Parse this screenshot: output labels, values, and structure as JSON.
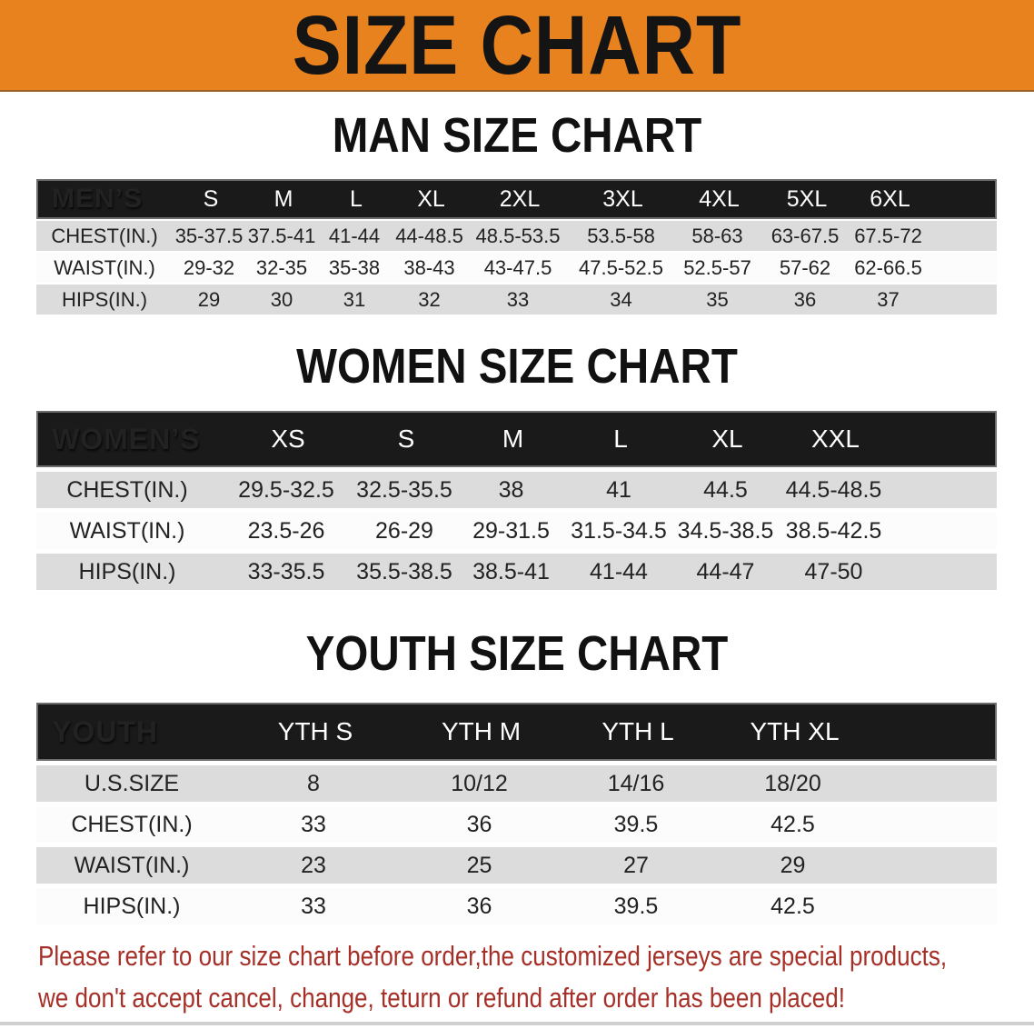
{
  "banner": {
    "title": "SIZE CHART"
  },
  "colors": {
    "banner_bg": "#E8821E",
    "table_header_bg": "#1A1A1A",
    "row_gray": "#DCDCDC",
    "row_white": "#FCFCFC",
    "note_red": "#A63028"
  },
  "sections": [
    {
      "heading": "MAN SIZE CHART",
      "table": {
        "label": "MEN’S",
        "columns": [
          "S",
          "M",
          "L",
          "XL",
          "2XL",
          "3XL",
          "4XL",
          "5XL",
          "6XL"
        ],
        "rows": [
          {
            "label": "CHEST(IN.)",
            "values": [
              "35-37.5",
              "37.5-41",
              "41-44",
              "44-48.5",
              "48.5-53.5",
              "53.5-58",
              "58-63",
              "63-67.5",
              "67.5-72"
            ]
          },
          {
            "label": "WAIST(IN.)",
            "values": [
              "29-32",
              "32-35",
              "35-38",
              "38-43",
              "43-47.5",
              "47.5-52.5",
              "52.5-57",
              "57-62",
              "62-66.5"
            ]
          },
          {
            "label": "HIPS(IN.)",
            "values": [
              "29",
              "30",
              "31",
              "32",
              "33",
              "34",
              "35",
              "36",
              "37"
            ]
          }
        ]
      }
    },
    {
      "heading": "WOMEN SIZE CHART",
      "table": {
        "label": "WOMEN’S",
        "columns": [
          "XS",
          "S",
          "M",
          "L",
          "XL",
          "XXL"
        ],
        "rows": [
          {
            "label": "CHEST(IN.)",
            "values": [
              "29.5-32.5",
              "32.5-35.5",
              "38",
              "41",
              "44.5",
              "44.5-48.5"
            ]
          },
          {
            "label": "WAIST(IN.)",
            "values": [
              "23.5-26",
              "26-29",
              "29-31.5",
              "31.5-34.5",
              "34.5-38.5",
              "38.5-42.5"
            ]
          },
          {
            "label": "HIPS(IN.)",
            "values": [
              "33-35.5",
              "35.5-38.5",
              "38.5-41",
              "41-44",
              "44-47",
              "47-50"
            ]
          }
        ]
      }
    },
    {
      "heading": "YOUTH SIZE CHART",
      "table": {
        "label": "YOUTH",
        "columns": [
          "YTH S",
          "YTH M",
          "YTH L",
          "YTH XL"
        ],
        "rows": [
          {
            "label": "U.S.SIZE",
            "values": [
              "8",
              "10/12",
              "14/16",
              "18/20"
            ]
          },
          {
            "label": "CHEST(IN.)",
            "values": [
              "33",
              "36",
              "39.5",
              "42.5"
            ]
          },
          {
            "label": "WAIST(IN.)",
            "values": [
              "23",
              "25",
              "27",
              "29"
            ]
          },
          {
            "label": "HIPS(IN.)",
            "values": [
              "33",
              "36",
              "39.5",
              "42.5"
            ]
          }
        ]
      }
    }
  ],
  "footer_note": {
    "line1": "Please refer to our size chart before order,the customized jerseys are special products,",
    "line2": "we don't accept cancel, change, teturn or refund after order has been placed!"
  }
}
